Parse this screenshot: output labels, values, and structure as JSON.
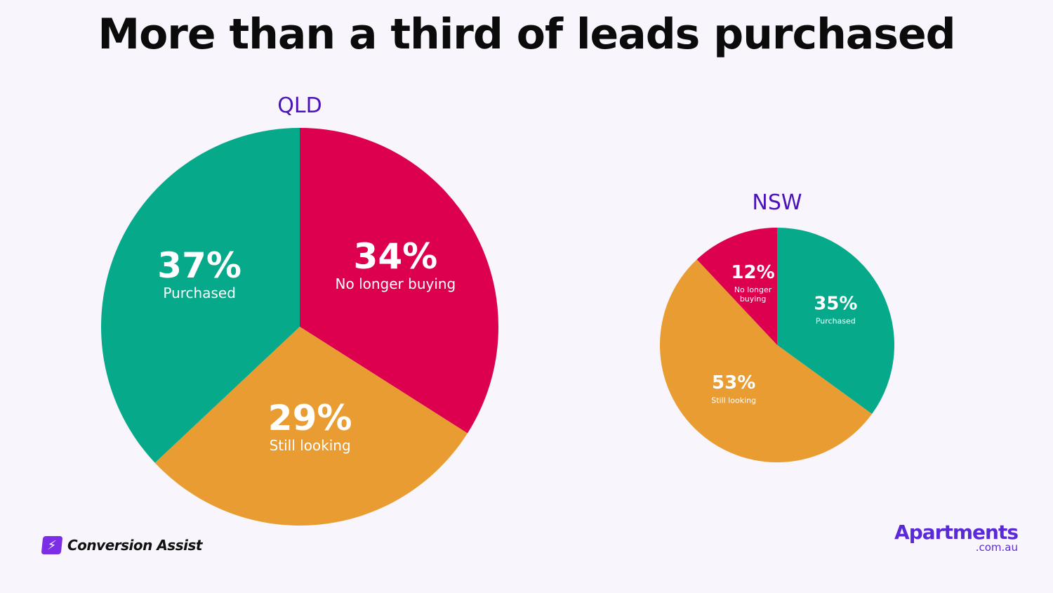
{
  "title": "More than a third of leads purchased",
  "colors": {
    "purchased": "#06a98a",
    "no_longer": "#dd004f",
    "still": "#e99c32",
    "heading": "#4b14b8",
    "label": "#ffffff"
  },
  "chart_data": [
    {
      "type": "pie",
      "title": "QLD",
      "slices": [
        {
          "label": "No longer buying",
          "value": 34,
          "display": "34%"
        },
        {
          "label": "Still looking",
          "value": 29,
          "display": "29%"
        },
        {
          "label": "Purchased",
          "value": 37,
          "display": "37%"
        }
      ]
    },
    {
      "type": "pie",
      "title": "NSW",
      "slices": [
        {
          "label": "Purchased",
          "value": 35,
          "display": "35%"
        },
        {
          "label": "Still looking",
          "value": 53,
          "display": "53%"
        },
        {
          "label": "No longer buying",
          "value": 12,
          "display": "12%"
        }
      ]
    }
  ],
  "footer": {
    "left_brand": "Conversion Assist",
    "left_icon": "lightning-icon",
    "right_brand_main": "Apartments",
    "right_brand_sub": ".com.au"
  }
}
